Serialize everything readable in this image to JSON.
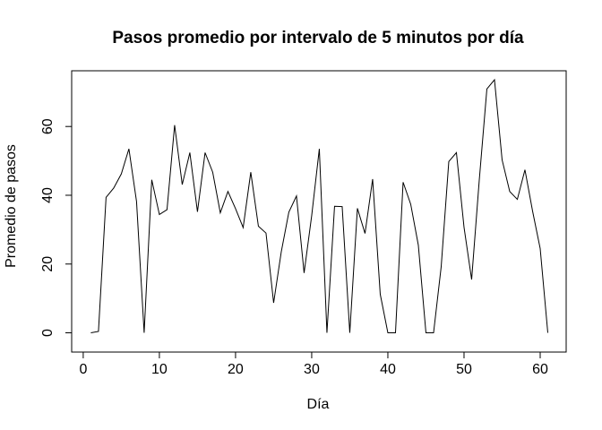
{
  "chart_data": {
    "type": "line",
    "title": "Pasos promedio por intervalo de 5 minutos por día",
    "xlabel": "Día",
    "ylabel": "Promedio de pasos",
    "xlim": [
      1,
      61
    ],
    "ylim": [
      0,
      73.6
    ],
    "x_ticks": [
      0,
      10,
      20,
      30,
      40,
      50,
      60
    ],
    "y_ticks": [
      0,
      20,
      40,
      60
    ],
    "grid": false,
    "line_color": "#000000",
    "x": [
      1,
      2,
      3,
      4,
      5,
      6,
      7,
      8,
      9,
      10,
      11,
      12,
      13,
      14,
      15,
      16,
      17,
      18,
      19,
      20,
      21,
      22,
      23,
      24,
      25,
      26,
      27,
      28,
      29,
      30,
      31,
      32,
      33,
      34,
      35,
      36,
      37,
      38,
      39,
      40,
      41,
      42,
      43,
      44,
      45,
      46,
      47,
      48,
      49,
      50,
      51,
      52,
      53,
      54,
      55,
      56,
      57,
      58,
      59,
      60,
      61
    ],
    "values": [
      0.0,
      0.4,
      39.4,
      42.1,
      46.2,
      53.5,
      38.2,
      0.0,
      44.5,
      34.4,
      35.8,
      60.4,
      43.1,
      52.4,
      35.2,
      52.4,
      46.7,
      34.9,
      41.1,
      36.1,
      30.6,
      46.7,
      31.0,
      29.0,
      8.7,
      23.5,
      35.1,
      39.8,
      17.4,
      34.1,
      53.5,
      0.0,
      36.8,
      36.7,
      0.0,
      36.2,
      28.9,
      44.7,
      11.2,
      0.0,
      0.0,
      43.8,
      37.4,
      25.5,
      0.0,
      0.0,
      19.2,
      49.8,
      52.4,
      30.7,
      15.5,
      44.4,
      70.9,
      73.6,
      50.3,
      41.1,
      38.8,
      47.4,
      35.4,
      24.5,
      0.0
    ]
  }
}
